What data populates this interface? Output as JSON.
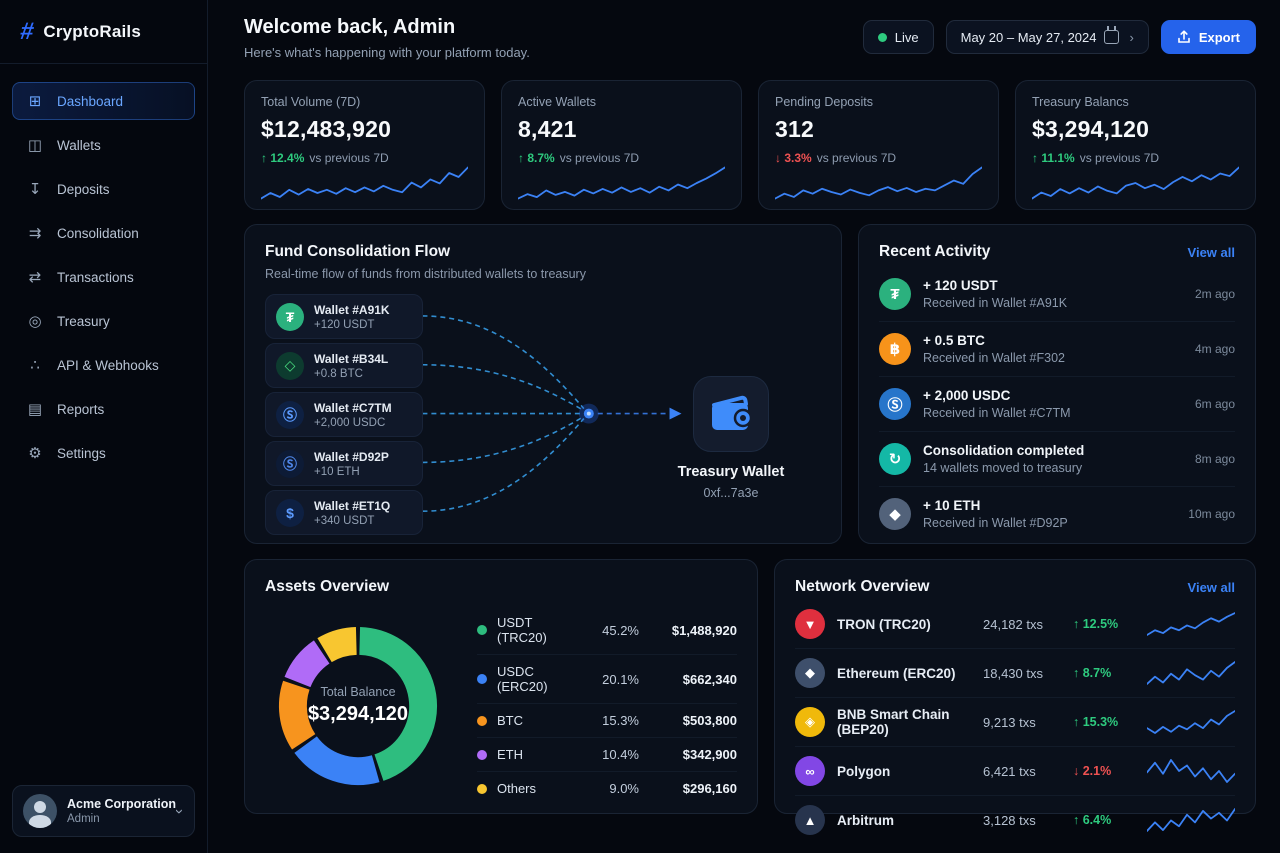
{
  "brand": {
    "name": "CryptoRails",
    "logo_glyph": "#",
    "accent": "#2563eb"
  },
  "sidebar": {
    "items": [
      {
        "label": "Dashboard",
        "icon": "dashboard-icon",
        "glyph": "⊞",
        "active": true
      },
      {
        "label": "Wallets",
        "icon": "wallets-icon",
        "glyph": "◫",
        "active": false
      },
      {
        "label": "Deposits",
        "icon": "deposits-icon",
        "glyph": "↧",
        "active": false
      },
      {
        "label": "Consolidation",
        "icon": "consolidation-icon",
        "glyph": "⇉",
        "active": false
      },
      {
        "label": "Transactions",
        "icon": "transactions-icon",
        "glyph": "⇄",
        "active": false
      },
      {
        "label": "Treasury",
        "icon": "treasury-icon",
        "glyph": "◎",
        "active": false
      },
      {
        "label": "API & Webhooks",
        "icon": "api-webhooks-icon",
        "glyph": "∴",
        "active": false
      },
      {
        "label": "Reports",
        "icon": "reports-icon",
        "glyph": "▤",
        "active": false
      },
      {
        "label": "Settings",
        "icon": "settings-icon",
        "glyph": "⚙",
        "active": false
      }
    ],
    "org": {
      "name": "Acme Corporation",
      "role": "Admin"
    }
  },
  "header": {
    "title": "Welcome back, Admin",
    "subtitle": "Here's what's happening with your platform today.",
    "live_label": "Live",
    "live_color": "#2ecb7f",
    "date_range": "May 20 – May 27, 2024",
    "export_label": "Export"
  },
  "stats": [
    {
      "label": "Total Volume (7D)",
      "value": "$12,483,920",
      "delta": "12.4%",
      "direction": "up",
      "suffix": "vs previous 7D",
      "sparkline": [
        2,
        2.7,
        2.2,
        3.1,
        2.5,
        3.2,
        2.7,
        3.1,
        2.6,
        3.3,
        2.8,
        3.4,
        2.9,
        3.6,
        3.1,
        2.8,
        4.0,
        3.4,
        4.4,
        3.9,
        5.2,
        4.7,
        5.9
      ]
    },
    {
      "label": "Active Wallets",
      "value": "8,421",
      "delta": "8.7%",
      "direction": "up",
      "suffix": "vs previous 7D",
      "sparkline": [
        2.2,
        2.8,
        2.4,
        3.3,
        2.7,
        3.1,
        2.6,
        3.4,
        2.9,
        3.5,
        3.0,
        3.7,
        3.1,
        3.6,
        3.0,
        3.8,
        3.3,
        4.1,
        3.6,
        4.3,
        4.9,
        5.6,
        6.4
      ]
    },
    {
      "label": "Pending Deposits",
      "value": "312",
      "delta": "3.3%",
      "direction": "down",
      "suffix": "vs previous 7D",
      "sparkline": [
        2.0,
        2.6,
        2.2,
        3.0,
        2.6,
        3.2,
        2.8,
        2.5,
        3.1,
        2.7,
        2.4,
        3.0,
        3.4,
        2.9,
        3.3,
        2.8,
        3.2,
        3.0,
        3.6,
        4.2,
        3.8,
        5.0,
        5.8
      ]
    },
    {
      "label": "Treasury Balancs",
      "value": "$3,294,120",
      "delta": "11.1%",
      "direction": "up",
      "suffix": "vs previous 7D",
      "sparkline": [
        2.1,
        2.8,
        2.4,
        3.2,
        2.7,
        3.3,
        2.8,
        3.5,
        3.0,
        2.7,
        3.6,
        3.9,
        3.3,
        3.7,
        3.2,
        4.0,
        4.6,
        4.1,
        4.8,
        4.3,
        5.0,
        4.7,
        5.7
      ]
    }
  ],
  "flow": {
    "title": "Fund Consolidation Flow",
    "subtitle": "Real-time flow of funds from distributed wallets to treasury",
    "wallets": [
      {
        "name": "Wallet #A91K",
        "amount": "+120 USDT",
        "icon": "usdt-icon",
        "glyph": "₮",
        "bg": "#2bb17e",
        "fg": "#ffffff"
      },
      {
        "name": "Wallet #B34L",
        "amount": "+0.8 BTC",
        "icon": "btc-icon",
        "glyph": "◇",
        "bg": "#0d3b2f",
        "fg": "#4ade80"
      },
      {
        "name": "Wallet #C7TM",
        "amount": "+2,000 USDC",
        "icon": "usdc-icon",
        "glyph": "Ⓢ",
        "bg": "#0e2042",
        "fg": "#5c9bff"
      },
      {
        "name": "Wallet #D92P",
        "amount": "+10 ETH",
        "icon": "eth-icon",
        "glyph": "Ⓢ",
        "bg": "#0d1b36",
        "fg": "#4f86e8"
      },
      {
        "name": "Wallet #ET1Q",
        "amount": "+340 USDT",
        "icon": "usdt-icon",
        "glyph": "$",
        "bg": "#0e2042",
        "fg": "#5c9bff"
      }
    ],
    "treasury": {
      "label": "Treasury Wallet",
      "address": "0xf...7a3e"
    }
  },
  "activity": {
    "title": "Recent Activity",
    "view_all": "View all",
    "items": [
      {
        "title": "+ 120 USDT",
        "subtitle": "Received in Wallet #A91K",
        "time": "2m ago",
        "icon": "usdt-icon",
        "glyph": "₮",
        "bg": "#2bb17e"
      },
      {
        "title": "+ 0.5 BTC",
        "subtitle": "Received in Wallet #F302",
        "time": "4m ago",
        "icon": "btc-icon",
        "glyph": "฿",
        "bg": "#f7931a"
      },
      {
        "title": "+ 2,000 USDC",
        "subtitle": "Received in Wallet #C7TM",
        "time": "6m ago",
        "icon": "usdc-icon",
        "glyph": "Ⓢ",
        "bg": "#2775ca"
      },
      {
        "title": "Consolidation completed",
        "subtitle": "14 wallets moved to treasury",
        "time": "8m ago",
        "icon": "consolidation-icon",
        "glyph": "↻",
        "bg": "#14b8a6"
      },
      {
        "title": "+ 10 ETH",
        "subtitle": "Received in Wallet #D92P",
        "time": "10m ago",
        "icon": "eth-icon",
        "glyph": "◆",
        "bg": "#52627a"
      }
    ]
  },
  "assets": {
    "title": "Assets Overview",
    "center_label": "Total Balance",
    "center_value": "$3,294,120"
  },
  "chart_data": {
    "type": "pie",
    "donut": true,
    "title": "Assets Overview",
    "labels": [
      "USDT (TRC20)",
      "USDC (ERC20)",
      "BTC",
      "ETH",
      "Others"
    ],
    "values": [
      45.2,
      20.1,
      15.3,
      10.4,
      9.0
    ],
    "amounts": [
      "$1,488,920",
      "$662,340",
      "$503,800",
      "$342,900",
      "$296,160"
    ],
    "colors": [
      "#2ebd7f",
      "#3b82f6",
      "#f7941e",
      "#b06bf7",
      "#f8c630"
    ],
    "center_label": "Total Balance",
    "center_value": "$3,294,120",
    "legend_position": "right"
  },
  "networks": {
    "title": "Network Overview",
    "view_all": "View all",
    "rows": [
      {
        "name": "TRON (TRC20)",
        "txs": "24,182 txs",
        "delta": "12.5%",
        "direction": "up",
        "icon": "tron-icon",
        "glyph": "▼",
        "bg": "#df2f3e",
        "sparkline": [
          3,
          4,
          3.4,
          4.6,
          4,
          5,
          4.4,
          5.6,
          6.5,
          5.8,
          6.8,
          7.6
        ]
      },
      {
        "name": "Ethereum (ERC20)",
        "txs": "18,430 txs",
        "delta": "8.7%",
        "direction": "up",
        "icon": "ethereum-icon",
        "glyph": "◆",
        "bg": "#3e4f6b",
        "sparkline": [
          4,
          5,
          4.2,
          5.4,
          4.6,
          6,
          5.2,
          4.6,
          5.8,
          5,
          6.2,
          7
        ]
      },
      {
        "name": "BNB Smart Chain (BEP20)",
        "txs": "9,213 txs",
        "delta": "15.3%",
        "direction": "up",
        "icon": "bnb-icon",
        "glyph": "◈",
        "bg": "#f0b90b",
        "sparkline": [
          5,
          4.2,
          5.2,
          4.4,
          5.4,
          4.8,
          5.8,
          5,
          6.4,
          5.6,
          7,
          7.8
        ]
      },
      {
        "name": "Polygon",
        "txs": "6,421 txs",
        "delta": "2.1%",
        "direction": "down",
        "icon": "polygon-icon",
        "glyph": "∞",
        "bg": "#8247e5",
        "sparkline": [
          5.5,
          6.2,
          5.4,
          6.4,
          5.6,
          6,
          5.2,
          5.8,
          5,
          5.6,
          4.8,
          5.4
        ]
      },
      {
        "name": "Arbitrum",
        "txs": "3,128 txs",
        "delta": "6.4%",
        "direction": "up",
        "icon": "arbitrum-icon",
        "glyph": "▲",
        "bg": "#27344d",
        "sparkline": [
          4.5,
          5.4,
          4.6,
          5.6,
          5,
          6.2,
          5.4,
          6.6,
          5.8,
          6.4,
          5.6,
          6.8
        ]
      }
    ]
  },
  "ui_colors": {
    "up": "#2ecb7f",
    "down": "#f05252",
    "spark": "#3b82f6",
    "link": "#3b82f6"
  }
}
